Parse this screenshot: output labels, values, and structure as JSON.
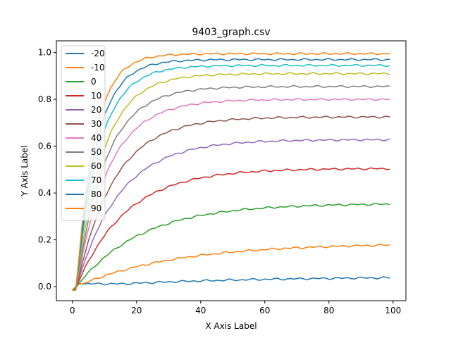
{
  "chart_data": {
    "type": "line",
    "title": "9403_graph.csv",
    "xlabel": "X Axis Label",
    "ylabel": "Y Axis Label",
    "xlim": [
      -5,
      104
    ],
    "ylim": [
      -0.06,
      1.05
    ],
    "xticks": [
      0,
      20,
      40,
      60,
      80,
      100
    ],
    "xtick_labels": [
      "0",
      "20",
      "40",
      "60",
      "80",
      "100"
    ],
    "yticks": [
      0,
      0.2,
      0.4,
      0.6,
      0.8,
      1.0
    ],
    "ytick_labels": [
      "0.0",
      "0.2",
      "0.4",
      "0.6",
      "0.8",
      "1.0"
    ],
    "grid": false,
    "legend_position": "top-left",
    "x_range": [
      0,
      99
    ],
    "series": [
      {
        "name": "-20",
        "color": "#1f77b4",
        "start": -0.015,
        "final": 0.043,
        "rate": 0.022
      },
      {
        "name": "-10",
        "color": "#ff7f0e",
        "start": -0.015,
        "final": 0.185,
        "rate": 0.033
      },
      {
        "name": "0",
        "color": "#2ca02c",
        "start": -0.015,
        "final": 0.355,
        "rate": 0.05
      },
      {
        "name": "10",
        "color": "#d62728",
        "start": -0.015,
        "final": 0.505,
        "rate": 0.065
      },
      {
        "name": "20",
        "color": "#9467bd",
        "start": -0.015,
        "final": 0.628,
        "rate": 0.075
      },
      {
        "name": "30",
        "color": "#8c564b",
        "start": -0.015,
        "final": 0.725,
        "rate": 0.085
      },
      {
        "name": "40",
        "color": "#e377c2",
        "start": -0.015,
        "final": 0.8,
        "rate": 0.1
      },
      {
        "name": "50",
        "color": "#7f7f7f",
        "start": -0.015,
        "final": 0.855,
        "rate": 0.11
      },
      {
        "name": "60",
        "color": "#bcbd22",
        "start": -0.015,
        "final": 0.91,
        "rate": 0.12
      },
      {
        "name": "70",
        "color": "#17becf",
        "start": -0.015,
        "final": 0.945,
        "rate": 0.14
      },
      {
        "name": "80",
        "color": "#1f77b4",
        "start": -0.015,
        "final": 0.97,
        "rate": 0.16
      },
      {
        "name": "90",
        "color": "#ff7f0e",
        "start": -0.015,
        "final": 0.995,
        "rate": 0.18
      }
    ]
  }
}
